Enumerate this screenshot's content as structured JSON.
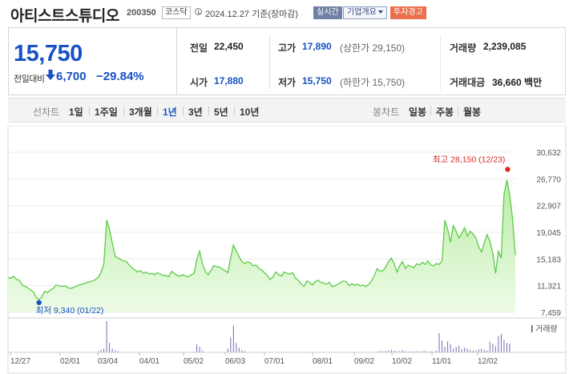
{
  "header": {
    "stock_name": "아티스트스튜디오",
    "stock_code": "200350",
    "market_badge": "코스닥",
    "date_text": "2024.12.27 기준(장마감)",
    "realtime_button": "실시간",
    "overview_dropdown": "기업개요",
    "warning_badge": "투자경고"
  },
  "price": {
    "current": "15,750",
    "vs_label": "전일대비",
    "change": "6,700",
    "change_pct": "−29.84%"
  },
  "summary": {
    "prev_close_label": "전일",
    "prev_close": "22,450",
    "high_label": "고가",
    "high": "17,890",
    "upper_limit": "(상한가 29,150)",
    "volume_label": "거래량",
    "volume": "2,239,085",
    "open_label": "시가",
    "open": "17,880",
    "low_label": "저가",
    "low": "15,750",
    "lower_limit": "(하한가 15,750)",
    "amount_label": "거래대금",
    "amount": "36,660 백만"
  },
  "period_bar": {
    "line_label": "선차트",
    "line_options": [
      "1일",
      "1주일",
      "3개월",
      "1년",
      "3년",
      "5년",
      "10년"
    ],
    "active_option": "1년",
    "candle_label": "봉차트",
    "candle_options": [
      "일봉",
      "주봉",
      "월봉"
    ]
  },
  "colors": {
    "accent_blue": "#1652c3",
    "line_green": "#5ccb46",
    "fill_green_top": "#b9eda5",
    "fill_green_bottom": "#eefbe7",
    "volume_purple": "#7b68b5",
    "max_red": "#d9281f",
    "min_blue": "#1652c3",
    "warning_orange": "#e96f4d"
  },
  "chart_data": {
    "type": "area",
    "y_ticks": [
      "30,632",
      "26,770",
      "22,907",
      "19,045",
      "15,183",
      "11,321",
      "7,459"
    ],
    "y_tick_values": [
      30632,
      26770,
      22907,
      19045,
      15183,
      11321,
      7459
    ],
    "ylim": [
      7459,
      30632
    ],
    "x_ticks": [
      "12/27",
      "02/01",
      "03/04",
      "04/01",
      "05/02",
      "06/03",
      "07/01",
      "08/01",
      "09/02",
      "10/02",
      "11/01",
      "12/02"
    ],
    "max_label": "최고 28,150 (12/23)",
    "min_label": "최저 9,340 (01/22)",
    "volume_label": "거래량",
    "grid": true,
    "series": [
      {
        "values": [
          12500,
          12400,
          12700,
          12200,
          12100,
          11400,
          11200,
          11000,
          10700,
          10400,
          9600,
          9340,
          9700,
          10500,
          10300,
          10700,
          10900,
          11400,
          11300,
          11200,
          11300,
          11100,
          10900,
          11000,
          11200,
          11400,
          11500,
          11600,
          11800,
          11900,
          12000,
          12200,
          12500,
          13200,
          14500,
          20800,
          19500,
          17500,
          15600,
          15300,
          15100,
          14900,
          14800,
          14300,
          13900,
          13600,
          13300,
          13500,
          13100,
          13300,
          13000,
          13100,
          12900,
          13200,
          13000,
          12800,
          12800,
          12600,
          13400,
          13100,
          12800,
          12700,
          12900,
          12700,
          12600,
          12900,
          13100,
          15100,
          16300,
          14400,
          13400,
          12900,
          13500,
          14200,
          14100,
          14000,
          13700,
          13500,
          13200,
          15300,
          17200,
          16300,
          15500,
          14800,
          14500,
          14800,
          14600,
          14200,
          14300,
          13800,
          13600,
          13200,
          12800,
          12200,
          12600,
          13300,
          12900,
          12700,
          13300,
          13100,
          13000,
          13200,
          12400,
          12100,
          11600,
          11200,
          12000,
          11800,
          11400,
          11900,
          12100,
          11800,
          11700,
          11500,
          11800,
          11200,
          11300,
          11500,
          11800,
          12000,
          11900,
          11300,
          11600,
          11400,
          11500,
          11300,
          11400,
          11200,
          11500,
          12000,
          12800,
          13800,
          13400,
          13500,
          14000,
          14800,
          15300,
          14500,
          13300,
          14200,
          14800,
          13800,
          14300,
          14100,
          13900,
          14500,
          14300,
          14700,
          14400,
          14900,
          14300,
          14200,
          14500,
          14400,
          14900,
          20800,
          19500,
          17600,
          20000,
          19200,
          18200,
          18900,
          19700,
          18500,
          19200,
          18800,
          18200,
          17000,
          16200,
          17500,
          18700,
          17700,
          16000,
          13100,
          16300,
          15300,
          24500,
          26600,
          24500,
          21000,
          15750
        ]
      }
    ],
    "volume_values": [
      0.0,
      0.0,
      0.0,
      0.0,
      0.0,
      0.0,
      0.0,
      0.0,
      0.0,
      0.0,
      0.0,
      0.0,
      0.0,
      0.0,
      0.0,
      0.0,
      0.0,
      0.0,
      0.0,
      0.0,
      0.0,
      0.0,
      0.0,
      0.0,
      0.0,
      0.0,
      0.0,
      0.0,
      0.0,
      0.0,
      0.0,
      0.0,
      0.04,
      0.08,
      0.12,
      1.0,
      0.3,
      0.12,
      0.06,
      0.04,
      0.0,
      0.0,
      0.0,
      0.0,
      0.0,
      0.0,
      0.0,
      0.0,
      0.0,
      0.0,
      0.0,
      0.0,
      0.0,
      0.0,
      0.0,
      0.0,
      0.0,
      0.0,
      0.0,
      0.0,
      0.0,
      0.0,
      0.0,
      0.0,
      0.0,
      0.0,
      0.03,
      0.25,
      0.18,
      0.05,
      0.0,
      0.0,
      0.0,
      0.0,
      0.0,
      0.0,
      0.0,
      0.0,
      0.12,
      0.48,
      0.86,
      0.3,
      0.15,
      0.07,
      0.04,
      0.0,
      0.0,
      0.0,
      0.0,
      0.0,
      0.0,
      0.0,
      0.0,
      0.0,
      0.0,
      0.0,
      0.0,
      0.0,
      0.0,
      0.0,
      0.0,
      0.0,
      0.0,
      0.0,
      0.0,
      0.0,
      0.0,
      0.0,
      0.0,
      0.0,
      0.0,
      0.0,
      0.0,
      0.0,
      0.0,
      0.0,
      0.0,
      0.0,
      0.0,
      0.0,
      0.0,
      0.0,
      0.0,
      0.0,
      0.0,
      0.0,
      0.0,
      0.0,
      0.0,
      0.0,
      0.0,
      0.03,
      0.05,
      0.04,
      0.05,
      0.06,
      0.08,
      0.05,
      0.04,
      0.05,
      0.06,
      0.04,
      0.03,
      0.04,
      0.03,
      0.04,
      0.03,
      0.04,
      0.05,
      0.03,
      0.04,
      0.03,
      0.06,
      0.62,
      0.38,
      0.18,
      0.35,
      0.26,
      0.12,
      0.18,
      0.22,
      0.1,
      0.15,
      0.12,
      0.08,
      0.06,
      0.05,
      0.1,
      0.12,
      0.08,
      0.06,
      0.34,
      0.28,
      0.2,
      0.52,
      0.58,
      0.4,
      0.3,
      0.28
    ]
  }
}
